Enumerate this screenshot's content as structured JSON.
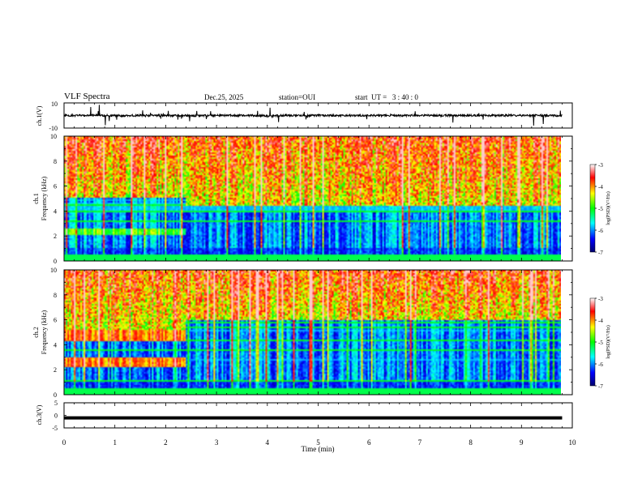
{
  "header": {
    "title": "VLF Spectra",
    "date": "Dec.25, 2025",
    "station": "station=OUI",
    "start_ut": "start  UT =   3 : 40 : 0"
  },
  "chart_data": [
    {
      "id": "ch1-waveform",
      "type": "line",
      "ylabel": "ch.1(V)",
      "ylim": [
        -10,
        10
      ],
      "ytick_labels": [
        "10",
        "-10"
      ],
      "baseline": 0,
      "xlim": [
        0,
        10
      ],
      "x_end": 9.8
    },
    {
      "id": "ch1-spectrogram",
      "type": "heatmap",
      "ylabel_top": "ch.1",
      "ylabel": "Frequency  (kHz)",
      "ylim": [
        0,
        10
      ],
      "ytick_labels": [
        "0",
        "2",
        "4",
        "6",
        "8",
        "10"
      ],
      "xlim": [
        0,
        10
      ],
      "x_end": 9.8,
      "colorbar": {
        "label": "log(PSD)(V²/Hz)",
        "range": [
          -7,
          -3
        ],
        "tick_labels": [
          "-3",
          "-4",
          "-5",
          "-6",
          "-7"
        ]
      },
      "band_edge_khz": [
        5.0,
        4.4
      ],
      "band_change_min": 2.4
    },
    {
      "id": "ch2-spectrogram",
      "type": "heatmap",
      "ylabel_top": "ch.2",
      "ylabel": "Frequency  (kHz)",
      "ylim": [
        0,
        10
      ],
      "ytick_labels": [
        "0",
        "2",
        "4",
        "6",
        "8",
        "10"
      ],
      "xlim": [
        0,
        10
      ],
      "x_end": 9.8,
      "colorbar": {
        "label": "log(PSD)(V²/Hz)",
        "range": [
          -7,
          -3
        ],
        "tick_labels": [
          "-3",
          "-4",
          "-5",
          "-6",
          "-7"
        ]
      },
      "band_edge_khz": [
        5.2,
        6.0
      ],
      "band_change_min": 2.4
    },
    {
      "id": "ch3-waveform",
      "type": "line",
      "ylabel": "ch.3(V)",
      "ylim": [
        -5,
        5
      ],
      "ytick_labels": [
        "5",
        "0",
        "-5"
      ],
      "baseline": -1,
      "xlim": [
        0,
        10
      ],
      "x_end": 9.8,
      "xlabel": "Time  (min)",
      "xtick_labels": [
        "0",
        "1",
        "2",
        "3",
        "4",
        "5",
        "6",
        "7",
        "8",
        "9",
        "10"
      ]
    }
  ]
}
